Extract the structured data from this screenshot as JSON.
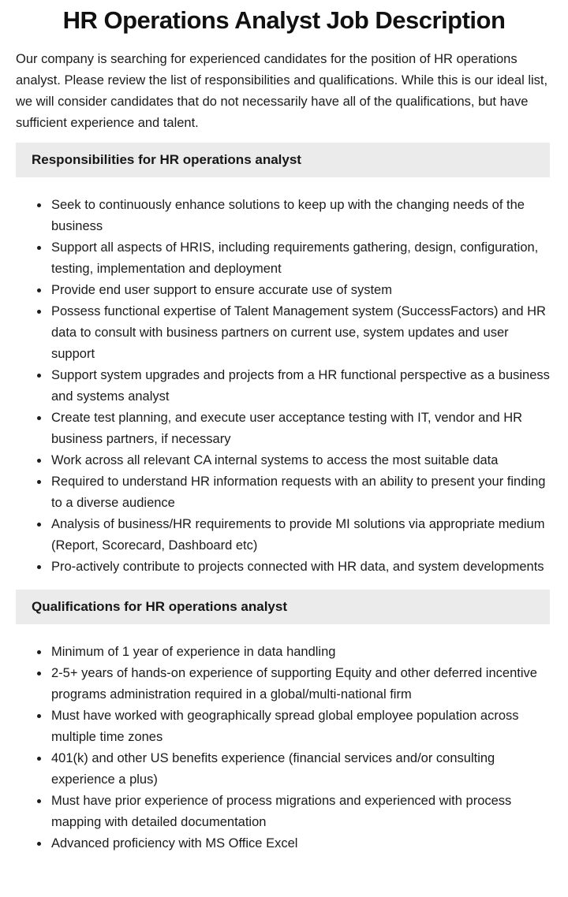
{
  "page": {
    "title": "HR Operations Analyst Job Description",
    "intro": "Our company is searching for experienced candidates for the position of HR operations analyst. Please review the list of responsibilities and qualifications. While this is our ideal list, we will consider candidates that do not necessarily have all of the qualifications, but have sufficient experience and talent.",
    "colors": {
      "section_header_bg": "#ebebeb",
      "text": "#1b1b1b"
    }
  },
  "sections": [
    {
      "heading": "Responsibilities for HR operations analyst",
      "items": [
        "Seek to continuously enhance solutions to keep up with the changing needs of the business",
        "Support all aspects of HRIS, including requirements gathering, design, configuration, testing, implementation and deployment",
        "Provide end user support to ensure accurate use of system",
        "Possess functional expertise of Talent Management system (SuccessFactors) and HR data to consult with business partners on current use, system updates and user support",
        "Support system upgrades and projects from a HR functional perspective as a business and systems analyst",
        "Create test planning, and execute user acceptance testing with IT, vendor and HR business partners, if necessary",
        "Work across all relevant CA internal systems to access the most suitable data",
        "Required to understand HR information requests with an ability to present your finding to a diverse audience",
        "Analysis of business/HR requirements to provide MI solutions via appropriate medium (Report, Scorecard, Dashboard etc)",
        "Pro-actively contribute to projects connected with HR data, and system developments"
      ]
    },
    {
      "heading": "Qualifications for HR operations analyst",
      "items": [
        "Minimum of 1 year of experience in data handling",
        "2-5+ years of hands-on experience of supporting Equity and other deferred incentive programs administration required in a global/multi-national firm",
        "Must have worked with geographically spread global employee population across multiple time zones",
        "401(k) and other US benefits experience (financial services and/or consulting experience a plus)",
        "Must have prior experience of process migrations and experienced with process mapping with detailed documentation",
        "Advanced proficiency with MS Office Excel"
      ]
    }
  ]
}
